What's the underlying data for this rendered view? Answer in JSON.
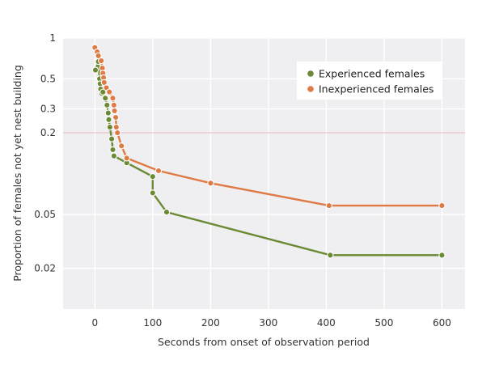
{
  "chart_data": {
    "type": "line",
    "xlabel": "Seconds from onset of observation period",
    "ylabel": "Proportion of females not yet nest building",
    "x_scale": "linear",
    "y_scale": "log",
    "xlim": [
      -55,
      640
    ],
    "ylim": [
      0.01,
      1
    ],
    "x_ticks": [
      0,
      100,
      200,
      300,
      400,
      500,
      600
    ],
    "x_tick_labels": [
      "0",
      "100",
      "200",
      "300",
      "400",
      "500",
      "600"
    ],
    "y_ticks": [
      1,
      0.5,
      0.3,
      0.2,
      0.05,
      0.02
    ],
    "y_tick_labels": [
      "1",
      "0.5",
      "0.3",
      "0.2",
      "0.05",
      "0.02"
    ],
    "grid": true,
    "legend_position": "top-right",
    "colors": {
      "background": "#efeff2",
      "grid": "#ffffff",
      "highlight_line": "#e7c7cb",
      "experienced": "#6b8a34",
      "inexperienced": "#e07a45"
    },
    "series": [
      {
        "name": "Experienced females",
        "color": "#6b8a34",
        "step": true,
        "points": [
          [
            1,
            0.58
          ],
          [
            6,
            0.67
          ],
          [
            8,
            0.5
          ],
          [
            9,
            0.46
          ],
          [
            10,
            0.42
          ],
          [
            12,
            0.39
          ],
          [
            14,
            0.4
          ],
          [
            18,
            0.36
          ],
          [
            21,
            0.32
          ],
          [
            23,
            0.28
          ],
          [
            24,
            0.25
          ],
          [
            26,
            0.22
          ],
          [
            29,
            0.18
          ],
          [
            31,
            0.15
          ],
          [
            33,
            0.135
          ],
          [
            55,
            0.12
          ],
          [
            100,
            0.095
          ],
          [
            100,
            0.072
          ],
          [
            124,
            0.052
          ],
          [
            407,
            0.025
          ],
          [
            600,
            0.025
          ]
        ]
      },
      {
        "name": "Inexperienced females",
        "color": "#e07a45",
        "step": true,
        "points": [
          [
            0,
            0.85
          ],
          [
            4,
            0.79
          ],
          [
            6,
            0.74
          ],
          [
            11,
            0.68
          ],
          [
            13,
            0.6
          ],
          [
            14,
            0.55
          ],
          [
            15,
            0.51
          ],
          [
            16,
            0.47
          ],
          [
            20,
            0.43
          ],
          [
            25,
            0.4
          ],
          [
            31,
            0.36
          ],
          [
            33,
            0.32
          ],
          [
            34,
            0.29
          ],
          [
            36,
            0.26
          ],
          [
            37,
            0.22
          ],
          [
            39,
            0.2
          ],
          [
            46,
            0.16
          ],
          [
            55,
            0.13
          ],
          [
            110,
            0.105
          ],
          [
            200,
            0.085
          ],
          [
            405,
            0.058
          ],
          [
            600,
            0.058
          ]
        ]
      }
    ]
  }
}
